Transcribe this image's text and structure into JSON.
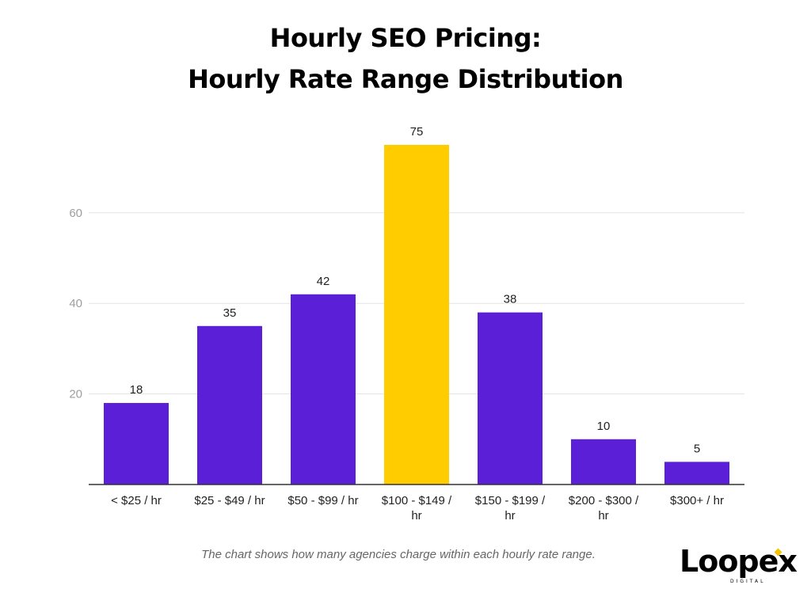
{
  "header": {
    "title_line1": "Hourly SEO Pricing:",
    "title_line2": "Hourly Rate Range Distribution"
  },
  "caption": "The chart shows how many agencies charge within each hourly rate range.",
  "logo": {
    "word": "Loopex",
    "sub": "DIGITAL",
    "accent_color": "#f5c400"
  },
  "chart_data": {
    "type": "bar",
    "categories": [
      [
        "< $25 / hr"
      ],
      [
        "$25 - $49 / hr"
      ],
      [
        "$50 - $99 / hr"
      ],
      [
        "$100 - $149 /",
        "hr"
      ],
      [
        "$150 - $199 /",
        "hr"
      ],
      [
        "$200 - $300 /",
        "hr"
      ],
      [
        "$300+ / hr"
      ]
    ],
    "values": [
      18,
      35,
      42,
      75,
      38,
      10,
      5
    ],
    "value_labels": [
      "18",
      "35",
      "42",
      "75",
      "38",
      "10",
      "5"
    ],
    "yticks": [
      20,
      40,
      60
    ],
    "ytick_labels": [
      "20",
      "40",
      "60"
    ],
    "ylim": [
      0,
      75
    ],
    "grid": true,
    "legend": "none",
    "colors": {
      "default": "#5a1fd6",
      "highlight": "#ffcc00",
      "highlight_index": 3,
      "grid": "#e3e3e3",
      "axis": "#333333"
    }
  }
}
